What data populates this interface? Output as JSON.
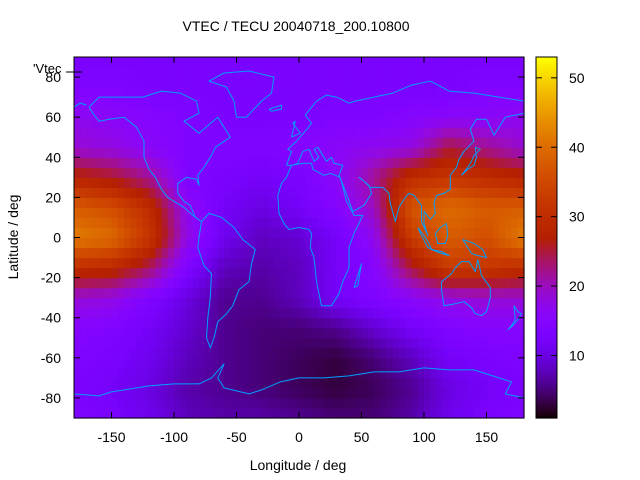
{
  "chart_data": {
    "type": "heatmap",
    "title": "VTEC / TECU 20040718_200.10800",
    "xlabel": "Longitude / deg",
    "ylabel": "Latitude / deg",
    "legend_key": "'Vtec",
    "xlim": [
      -180,
      180
    ],
    "ylim": [
      -90,
      90
    ],
    "x_ticks": [
      -150,
      -100,
      -50,
      0,
      50,
      100,
      150
    ],
    "y_ticks": [
      -80,
      -60,
      -40,
      -20,
      0,
      20,
      40,
      60,
      80
    ],
    "colorbar": {
      "range": [
        1,
        53
      ],
      "ticks": [
        10,
        20,
        30,
        40,
        50
      ],
      "palette": "black-purple-red-orange-yellow"
    },
    "grid": false,
    "legend_position": "top-left",
    "overlay": "continent outlines",
    "overlay_color": "#00a0ff",
    "field": {
      "lons": [
        -180,
        -150,
        -120,
        -90,
        -60,
        -30,
        0,
        30,
        60,
        90,
        120,
        150,
        180
      ],
      "lats": [
        -90,
        -75,
        -60,
        -45,
        -30,
        -15,
        0,
        15,
        30,
        45,
        60,
        75,
        90
      ],
      "values": [
        [
          14,
          13,
          11,
          8,
          7,
          7,
          6,
          5,
          5,
          7,
          11,
          13,
          14
        ],
        [
          13,
          12,
          10,
          7,
          6,
          5,
          4,
          3,
          4,
          6,
          10,
          12,
          13
        ],
        [
          14,
          13,
          11,
          8,
          6,
          5,
          4,
          3,
          5,
          8,
          12,
          13,
          14
        ],
        [
          15,
          14,
          12,
          9,
          6,
          5,
          5,
          6,
          9,
          12,
          14,
          15,
          15
        ],
        [
          19,
          18,
          14,
          10,
          6,
          6,
          8,
          12,
          14,
          16,
          18,
          19,
          19
        ],
        [
          30,
          29,
          24,
          14,
          8,
          7,
          8,
          12,
          15,
          25,
          33,
          32,
          30
        ],
        [
          42,
          40,
          32,
          18,
          11,
          8,
          9,
          12,
          17,
          33,
          38,
          36,
          42
        ],
        [
          38,
          36,
          30,
          17,
          12,
          10,
          12,
          15,
          20,
          37,
          40,
          38,
          38
        ],
        [
          28,
          26,
          22,
          14,
          13,
          12,
          13,
          16,
          22,
          30,
          32,
          30,
          28
        ],
        [
          19,
          18,
          16,
          14,
          14,
          14,
          15,
          16,
          17,
          18,
          25,
          22,
          19
        ],
        [
          17,
          16,
          15,
          14,
          13,
          13,
          13,
          14,
          14,
          15,
          16,
          16,
          17
        ],
        [
          14,
          14,
          13,
          13,
          13,
          13,
          13,
          13,
          13,
          13,
          13,
          14,
          14
        ],
        [
          13,
          13,
          13,
          13,
          13,
          13,
          13,
          13,
          13,
          13,
          13,
          13,
          13
        ]
      ]
    }
  }
}
